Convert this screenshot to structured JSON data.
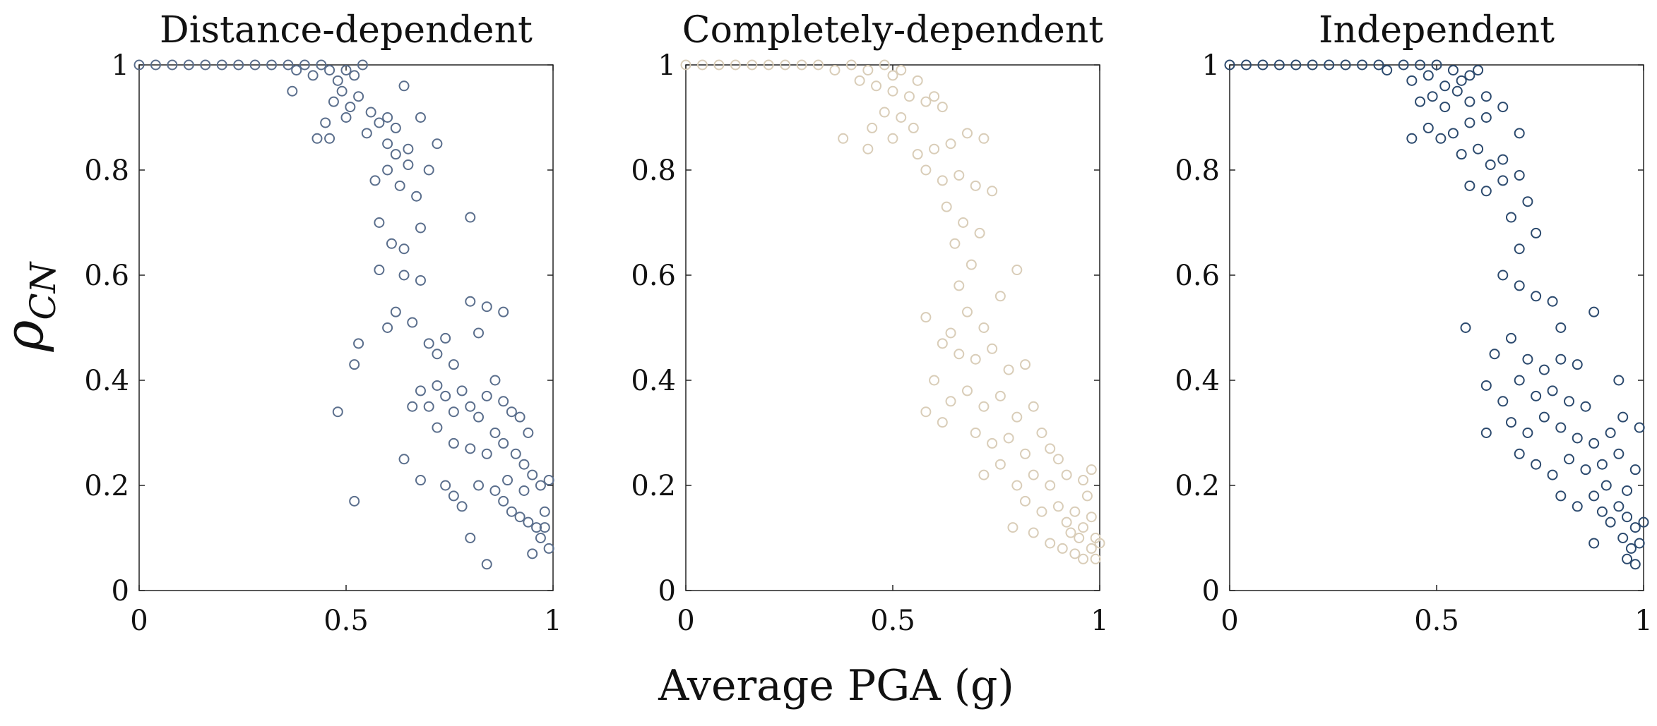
{
  "figure": {
    "shared_xlabel": "Average PGA (g)",
    "shared_ylabel_symbol": "ρ",
    "shared_ylabel_subscript": "CN"
  },
  "chart_data": [
    {
      "type": "scatter",
      "title": "Distance-dependent",
      "xlabel": "Average PGA (g)",
      "ylabel": "ρCN",
      "xlim": [
        0,
        1
      ],
      "ylim": [
        0,
        1
      ],
      "xticks": [
        "0",
        "0.5",
        "1"
      ],
      "yticks": [
        "0",
        "0.2",
        "0.4",
        "0.6",
        "0.8",
        "1"
      ],
      "grid": false,
      "marker_color": "#5a6e8c",
      "points": [
        [
          0.0,
          1.0
        ],
        [
          0.04,
          1.0
        ],
        [
          0.08,
          1.0
        ],
        [
          0.12,
          1.0
        ],
        [
          0.16,
          1.0
        ],
        [
          0.2,
          1.0
        ],
        [
          0.24,
          1.0
        ],
        [
          0.28,
          1.0
        ],
        [
          0.32,
          1.0
        ],
        [
          0.36,
          1.0
        ],
        [
          0.38,
          0.99
        ],
        [
          0.4,
          1.0
        ],
        [
          0.42,
          0.98
        ],
        [
          0.44,
          1.0
        ],
        [
          0.37,
          0.95
        ],
        [
          0.46,
          0.99
        ],
        [
          0.48,
          0.97
        ],
        [
          0.5,
          0.99
        ],
        [
          0.52,
          0.98
        ],
        [
          0.54,
          1.0
        ],
        [
          0.47,
          0.93
        ],
        [
          0.49,
          0.95
        ],
        [
          0.51,
          0.92
        ],
        [
          0.53,
          0.94
        ],
        [
          0.45,
          0.89
        ],
        [
          0.5,
          0.9
        ],
        [
          0.56,
          0.91
        ],
        [
          0.58,
          0.89
        ],
        [
          0.6,
          0.9
        ],
        [
          0.62,
          0.88
        ],
        [
          0.64,
          0.96
        ],
        [
          0.43,
          0.86
        ],
        [
          0.46,
          0.86
        ],
        [
          0.55,
          0.87
        ],
        [
          0.6,
          0.85
        ],
        [
          0.62,
          0.83
        ],
        [
          0.65,
          0.84
        ],
        [
          0.68,
          0.9
        ],
        [
          0.72,
          0.85
        ],
        [
          0.57,
          0.78
        ],
        [
          0.6,
          0.8
        ],
        [
          0.63,
          0.77
        ],
        [
          0.65,
          0.81
        ],
        [
          0.67,
          0.75
        ],
        [
          0.7,
          0.8
        ],
        [
          0.58,
          0.7
        ],
        [
          0.61,
          0.66
        ],
        [
          0.64,
          0.65
        ],
        [
          0.68,
          0.69
        ],
        [
          0.8,
          0.71
        ],
        [
          0.58,
          0.61
        ],
        [
          0.64,
          0.6
        ],
        [
          0.68,
          0.59
        ],
        [
          0.62,
          0.53
        ],
        [
          0.66,
          0.51
        ],
        [
          0.6,
          0.5
        ],
        [
          0.53,
          0.47
        ],
        [
          0.52,
          0.43
        ],
        [
          0.48,
          0.34
        ],
        [
          0.7,
          0.47
        ],
        [
          0.72,
          0.45
        ],
        [
          0.74,
          0.48
        ],
        [
          0.76,
          0.43
        ],
        [
          0.8,
          0.55
        ],
        [
          0.84,
          0.54
        ],
        [
          0.82,
          0.49
        ],
        [
          0.88,
          0.53
        ],
        [
          0.66,
          0.35
        ],
        [
          0.68,
          0.38
        ],
        [
          0.7,
          0.35
        ],
        [
          0.72,
          0.39
        ],
        [
          0.74,
          0.37
        ],
        [
          0.76,
          0.34
        ],
        [
          0.78,
          0.38
        ],
        [
          0.8,
          0.35
        ],
        [
          0.82,
          0.33
        ],
        [
          0.84,
          0.37
        ],
        [
          0.86,
          0.4
        ],
        [
          0.88,
          0.36
        ],
        [
          0.9,
          0.34
        ],
        [
          0.92,
          0.33
        ],
        [
          0.94,
          0.3
        ],
        [
          0.72,
          0.31
        ],
        [
          0.76,
          0.28
        ],
        [
          0.8,
          0.27
        ],
        [
          0.84,
          0.26
        ],
        [
          0.86,
          0.3
        ],
        [
          0.88,
          0.28
        ],
        [
          0.91,
          0.26
        ],
        [
          0.93,
          0.24
        ],
        [
          0.95,
          0.22
        ],
        [
          0.97,
          0.2
        ],
        [
          0.99,
          0.21
        ],
        [
          0.64,
          0.25
        ],
        [
          0.68,
          0.21
        ],
        [
          0.74,
          0.2
        ],
        [
          0.76,
          0.18
        ],
        [
          0.78,
          0.16
        ],
        [
          0.82,
          0.2
        ],
        [
          0.86,
          0.19
        ],
        [
          0.88,
          0.17
        ],
        [
          0.9,
          0.15
        ],
        [
          0.92,
          0.14
        ],
        [
          0.94,
          0.13
        ],
        [
          0.96,
          0.12
        ],
        [
          0.98,
          0.15
        ],
        [
          0.97,
          0.1
        ],
        [
          0.99,
          0.08
        ],
        [
          0.95,
          0.07
        ],
        [
          0.8,
          0.1
        ],
        [
          0.84,
          0.05
        ],
        [
          0.52,
          0.17
        ],
        [
          0.89,
          0.21
        ],
        [
          0.93,
          0.19
        ],
        [
          0.98,
          0.12
        ]
      ]
    },
    {
      "type": "scatter",
      "title": "Completely-dependent",
      "xlabel": "Average PGA (g)",
      "ylabel": "ρCN",
      "xlim": [
        0,
        1
      ],
      "ylim": [
        0,
        1
      ],
      "xticks": [
        "0",
        "0.5",
        "1"
      ],
      "yticks": [
        "0",
        "0.2",
        "0.4",
        "0.6",
        "0.8",
        "1"
      ],
      "grid": false,
      "marker_color": "#d9cdb8",
      "points": [
        [
          0.0,
          1.0
        ],
        [
          0.04,
          1.0
        ],
        [
          0.08,
          1.0
        ],
        [
          0.12,
          1.0
        ],
        [
          0.16,
          1.0
        ],
        [
          0.2,
          1.0
        ],
        [
          0.24,
          1.0
        ],
        [
          0.28,
          1.0
        ],
        [
          0.32,
          1.0
        ],
        [
          0.36,
          0.99
        ],
        [
          0.4,
          1.0
        ],
        [
          0.44,
          0.99
        ],
        [
          0.48,
          1.0
        ],
        [
          0.5,
          0.98
        ],
        [
          0.52,
          0.99
        ],
        [
          0.38,
          0.86
        ],
        [
          0.42,
          0.97
        ],
        [
          0.46,
          0.96
        ],
        [
          0.5,
          0.95
        ],
        [
          0.54,
          0.94
        ],
        [
          0.56,
          0.97
        ],
        [
          0.45,
          0.88
        ],
        [
          0.48,
          0.91
        ],
        [
          0.52,
          0.9
        ],
        [
          0.55,
          0.88
        ],
        [
          0.58,
          0.93
        ],
        [
          0.6,
          0.94
        ],
        [
          0.62,
          0.92
        ],
        [
          0.44,
          0.84
        ],
        [
          0.5,
          0.86
        ],
        [
          0.56,
          0.83
        ],
        [
          0.6,
          0.84
        ],
        [
          0.64,
          0.85
        ],
        [
          0.68,
          0.87
        ],
        [
          0.72,
          0.86
        ],
        [
          0.58,
          0.8
        ],
        [
          0.62,
          0.78
        ],
        [
          0.66,
          0.79
        ],
        [
          0.7,
          0.77
        ],
        [
          0.74,
          0.76
        ],
        [
          0.63,
          0.73
        ],
        [
          0.67,
          0.7
        ],
        [
          0.71,
          0.68
        ],
        [
          0.65,
          0.66
        ],
        [
          0.69,
          0.62
        ],
        [
          0.8,
          0.61
        ],
        [
          0.66,
          0.58
        ],
        [
          0.76,
          0.56
        ],
        [
          0.58,
          0.52
        ],
        [
          0.64,
          0.49
        ],
        [
          0.68,
          0.53
        ],
        [
          0.72,
          0.5
        ],
        [
          0.62,
          0.47
        ],
        [
          0.66,
          0.45
        ],
        [
          0.7,
          0.44
        ],
        [
          0.74,
          0.46
        ],
        [
          0.78,
          0.42
        ],
        [
          0.82,
          0.43
        ],
        [
          0.6,
          0.4
        ],
        [
          0.64,
          0.36
        ],
        [
          0.68,
          0.38
        ],
        [
          0.72,
          0.35
        ],
        [
          0.76,
          0.37
        ],
        [
          0.8,
          0.33
        ],
        [
          0.84,
          0.35
        ],
        [
          0.58,
          0.34
        ],
        [
          0.62,
          0.32
        ],
        [
          0.7,
          0.3
        ],
        [
          0.74,
          0.28
        ],
        [
          0.78,
          0.29
        ],
        [
          0.82,
          0.26
        ],
        [
          0.86,
          0.3
        ],
        [
          0.88,
          0.27
        ],
        [
          0.9,
          0.25
        ],
        [
          0.72,
          0.22
        ],
        [
          0.76,
          0.24
        ],
        [
          0.8,
          0.2
        ],
        [
          0.84,
          0.22
        ],
        [
          0.88,
          0.2
        ],
        [
          0.92,
          0.22
        ],
        [
          0.96,
          0.21
        ],
        [
          0.98,
          0.23
        ],
        [
          0.82,
          0.17
        ],
        [
          0.86,
          0.15
        ],
        [
          0.9,
          0.16
        ],
        [
          0.92,
          0.13
        ],
        [
          0.94,
          0.15
        ],
        [
          0.96,
          0.12
        ],
        [
          0.98,
          0.14
        ],
        [
          0.99,
          0.1
        ],
        [
          0.84,
          0.11
        ],
        [
          0.88,
          0.09
        ],
        [
          0.91,
          0.08
        ],
        [
          0.94,
          0.07
        ],
        [
          0.96,
          0.06
        ],
        [
          0.98,
          0.08
        ],
        [
          1.0,
          0.09
        ],
        [
          0.93,
          0.11
        ],
        [
          0.97,
          0.18
        ],
        [
          0.95,
          0.1
        ],
        [
          0.79,
          0.12
        ],
        [
          0.99,
          0.06
        ]
      ]
    },
    {
      "type": "scatter",
      "title": "Independent",
      "xlabel": "Average PGA (g)",
      "ylabel": "ρCN",
      "xlim": [
        0,
        1
      ],
      "ylim": [
        0,
        1
      ],
      "xticks": [
        "0",
        "0.5",
        "1"
      ],
      "yticks": [
        "0",
        "0.2",
        "0.4",
        "0.6",
        "0.8",
        "1"
      ],
      "grid": false,
      "marker_color": "#2c4a6e",
      "points": [
        [
          0.0,
          1.0
        ],
        [
          0.04,
          1.0
        ],
        [
          0.08,
          1.0
        ],
        [
          0.12,
          1.0
        ],
        [
          0.16,
          1.0
        ],
        [
          0.2,
          1.0
        ],
        [
          0.24,
          1.0
        ],
        [
          0.28,
          1.0
        ],
        [
          0.32,
          1.0
        ],
        [
          0.36,
          1.0
        ],
        [
          0.38,
          0.99
        ],
        [
          0.42,
          1.0
        ],
        [
          0.46,
          1.0
        ],
        [
          0.5,
          1.0
        ],
        [
          0.54,
          0.99
        ],
        [
          0.44,
          0.97
        ],
        [
          0.48,
          0.98
        ],
        [
          0.52,
          0.96
        ],
        [
          0.56,
          0.97
        ],
        [
          0.58,
          0.98
        ],
        [
          0.6,
          0.99
        ],
        [
          0.46,
          0.93
        ],
        [
          0.49,
          0.94
        ],
        [
          0.52,
          0.92
        ],
        [
          0.55,
          0.95
        ],
        [
          0.58,
          0.93
        ],
        [
          0.62,
          0.94
        ],
        [
          0.44,
          0.86
        ],
        [
          0.48,
          0.88
        ],
        [
          0.51,
          0.86
        ],
        [
          0.54,
          0.87
        ],
        [
          0.58,
          0.89
        ],
        [
          0.62,
          0.9
        ],
        [
          0.66,
          0.92
        ],
        [
          0.56,
          0.83
        ],
        [
          0.6,
          0.84
        ],
        [
          0.63,
          0.81
        ],
        [
          0.66,
          0.82
        ],
        [
          0.7,
          0.87
        ],
        [
          0.58,
          0.77
        ],
        [
          0.62,
          0.76
        ],
        [
          0.66,
          0.78
        ],
        [
          0.7,
          0.79
        ],
        [
          0.72,
          0.74
        ],
        [
          0.68,
          0.71
        ],
        [
          0.7,
          0.65
        ],
        [
          0.74,
          0.68
        ],
        [
          0.66,
          0.6
        ],
        [
          0.7,
          0.58
        ],
        [
          0.74,
          0.56
        ],
        [
          0.78,
          0.55
        ],
        [
          0.57,
          0.5
        ],
        [
          0.68,
          0.48
        ],
        [
          0.8,
          0.5
        ],
        [
          0.88,
          0.53
        ],
        [
          0.64,
          0.45
        ],
        [
          0.72,
          0.44
        ],
        [
          0.76,
          0.42
        ],
        [
          0.8,
          0.44
        ],
        [
          0.84,
          0.43
        ],
        [
          0.62,
          0.39
        ],
        [
          0.66,
          0.36
        ],
        [
          0.7,
          0.4
        ],
        [
          0.74,
          0.37
        ],
        [
          0.78,
          0.38
        ],
        [
          0.82,
          0.36
        ],
        [
          0.86,
          0.35
        ],
        [
          0.68,
          0.32
        ],
        [
          0.72,
          0.3
        ],
        [
          0.76,
          0.33
        ],
        [
          0.8,
          0.31
        ],
        [
          0.84,
          0.29
        ],
        [
          0.88,
          0.28
        ],
        [
          0.92,
          0.3
        ],
        [
          0.95,
          0.33
        ],
        [
          0.62,
          0.3
        ],
        [
          0.7,
          0.26
        ],
        [
          0.74,
          0.24
        ],
        [
          0.78,
          0.22
        ],
        [
          0.82,
          0.25
        ],
        [
          0.86,
          0.23
        ],
        [
          0.9,
          0.24
        ],
        [
          0.94,
          0.26
        ],
        [
          0.98,
          0.23
        ],
        [
          0.8,
          0.18
        ],
        [
          0.84,
          0.16
        ],
        [
          0.88,
          0.18
        ],
        [
          0.9,
          0.15
        ],
        [
          0.92,
          0.13
        ],
        [
          0.94,
          0.16
        ],
        [
          0.96,
          0.14
        ],
        [
          0.98,
          0.12
        ],
        [
          1.0,
          0.13
        ],
        [
          0.95,
          0.1
        ],
        [
          0.97,
          0.08
        ],
        [
          0.99,
          0.09
        ],
        [
          0.96,
          0.06
        ],
        [
          0.98,
          0.05
        ],
        [
          0.88,
          0.09
        ],
        [
          0.94,
          0.4
        ],
        [
          0.99,
          0.31
        ],
        [
          0.96,
          0.19
        ],
        [
          0.91,
          0.2
        ]
      ]
    }
  ]
}
